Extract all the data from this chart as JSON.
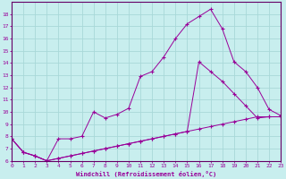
{
  "xlabel": "Windchill (Refroidissement éolien,°C)",
  "bg_color": "#c8eeee",
  "grid_color": "#a8d8d8",
  "line_color": "#990099",
  "xlim": [
    0,
    23
  ],
  "ylim": [
    6,
    19
  ],
  "xticks": [
    0,
    1,
    2,
    3,
    4,
    5,
    6,
    7,
    8,
    9,
    10,
    11,
    12,
    13,
    14,
    15,
    16,
    17,
    18,
    19,
    20,
    21,
    22,
    23
  ],
  "yticks": [
    6,
    7,
    8,
    9,
    10,
    11,
    12,
    13,
    14,
    15,
    16,
    17,
    18
  ],
  "line_straight_x": [
    0,
    1,
    2,
    3,
    4,
    5,
    6,
    7,
    8,
    9,
    10,
    11,
    12,
    13,
    14,
    15,
    16,
    17,
    18,
    19,
    20,
    21,
    22,
    23
  ],
  "line_straight_y": [
    7.8,
    6.7,
    6.4,
    6.0,
    6.2,
    6.4,
    6.6,
    6.8,
    7.0,
    7.2,
    7.4,
    7.6,
    7.8,
    8.0,
    8.2,
    8.4,
    8.6,
    8.8,
    9.0,
    9.2,
    9.4,
    9.6,
    9.6,
    9.6
  ],
  "line_top_x": [
    0,
    1,
    2,
    3,
    4,
    5,
    6,
    7,
    8,
    9,
    10,
    11,
    12,
    13,
    14,
    15,
    16,
    17,
    18,
    19,
    20,
    21,
    22,
    23
  ],
  "line_top_y": [
    7.8,
    6.7,
    6.4,
    6.0,
    7.8,
    7.8,
    8.0,
    10.0,
    9.5,
    9.8,
    10.3,
    12.9,
    13.3,
    14.5,
    16.0,
    17.2,
    17.8,
    18.4,
    16.8,
    14.1,
    13.3,
    12.0,
    10.2,
    9.7
  ],
  "line_mid_x": [
    0,
    1,
    2,
    3,
    4,
    5,
    6,
    7,
    8,
    9,
    10,
    11,
    12,
    13,
    14,
    15,
    16,
    17,
    18,
    19,
    20,
    21,
    22,
    23
  ],
  "line_mid_y": [
    7.8,
    6.7,
    6.4,
    6.0,
    6.2,
    6.4,
    6.6,
    6.8,
    7.0,
    7.2,
    7.4,
    7.6,
    7.8,
    8.0,
    8.2,
    8.4,
    14.1,
    13.3,
    12.5,
    11.5,
    10.5,
    9.5,
    9.6,
    9.6
  ]
}
